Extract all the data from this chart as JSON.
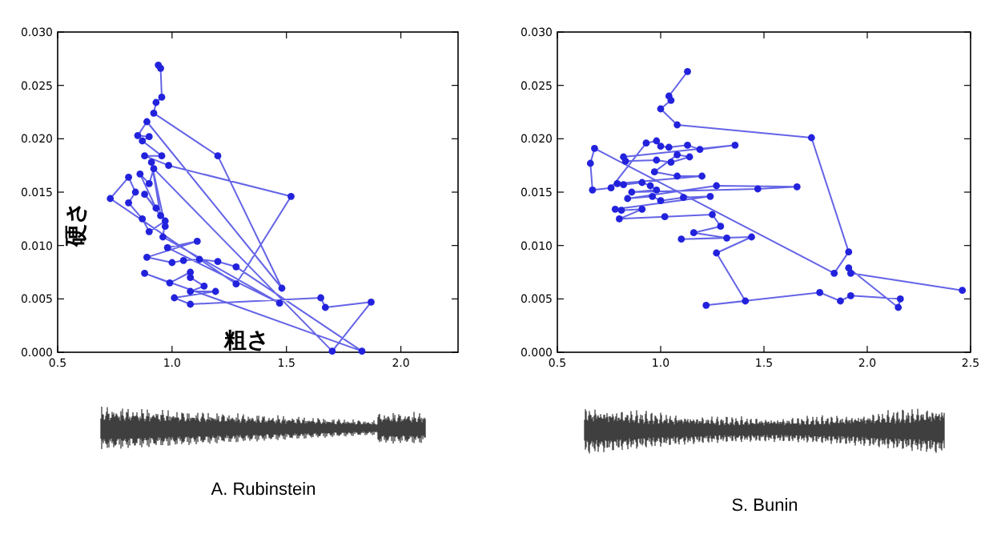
{
  "chart_data": [
    {
      "type": "line",
      "xlabel": "粗さ",
      "ylabel": "硬さ",
      "annotations": [
        "A. Rubinstein"
      ],
      "marker": "circle",
      "line_style": "solid",
      "xlim": [
        0.5,
        2.25
      ],
      "xticks": [
        {
          "value": 0.5,
          "label": "0.5"
        },
        {
          "value": 1,
          "label": "1.0"
        },
        {
          "value": 1.5,
          "label": "1.5"
        },
        {
          "value": 2,
          "label": "2.0"
        }
      ],
      "ylim": [
        0,
        0.03
      ],
      "yticks": [
        {
          "value": 0,
          "label": "0.000"
        },
        {
          "value": 0.005,
          "label": "0.005"
        },
        {
          "value": 0.01,
          "label": "0.010"
        },
        {
          "value": 0.015,
          "label": "0.015"
        },
        {
          "value": 0.02,
          "label": "0.020"
        },
        {
          "value": 0.025,
          "label": "0.025"
        },
        {
          "value": 0.03,
          "label": "0.030"
        }
      ],
      "series": [
        {
          "color": "#2222dd",
          "x": [
            0.94,
            0.95,
            0.955,
            0.93,
            0.92,
            1.2,
            1.48,
            0.89,
            0.85,
            0.9,
            0.87,
            0.955,
            0.88,
            0.985,
            1.52,
            1.28,
            0.73,
            0.81,
            0.84,
            0.81,
            0.87,
            0.9,
            0.97,
            0.96,
            1.47,
            0.98,
            1.11,
            0.89,
            1.0,
            1.05,
            1.12,
            1.2,
            1.28,
            1.83,
            0.88,
            0.99,
            1.08,
            1.08,
            1.14,
            1.08,
            1.19,
            1.01,
            1.08,
            1.65,
            1.67,
            1.87,
            1.7,
            0.92,
            0.9,
            0.86,
            0.93,
            0.88,
            0.95,
            0.91,
            0.97
          ],
          "values": [
            0.0269,
            0.0266,
            0.0239,
            0.0234,
            0.0224,
            0.0184,
            0.006,
            0.0216,
            0.0203,
            0.0202,
            0.0198,
            0.0184,
            0.0184,
            0.0175,
            0.0146,
            0.0064,
            0.0144,
            0.0164,
            0.015,
            0.014,
            0.0125,
            0.0113,
            0.0123,
            0.0108,
            0.0046,
            0.0098,
            0.0104,
            0.0089,
            0.0084,
            0.0086,
            0.0087,
            0.0085,
            0.008,
            0.0001,
            0.0074,
            0.0065,
            0.0075,
            0.007,
            0.0062,
            0.0057,
            0.0057,
            0.0051,
            0.0045,
            0.0051,
            0.0042,
            0.0047,
            0.0001,
            0.0172,
            0.0158,
            0.0167,
            0.0135,
            0.0148,
            0.0128,
            0.0178,
            0.0118
          ]
        }
      ]
    },
    {
      "type": "line",
      "annotations": [
        "S. Bunin"
      ],
      "marker": "circle",
      "line_style": "solid",
      "xlim": [
        0.5,
        2.5
      ],
      "xticks": [
        {
          "value": 0.5,
          "label": "0.5"
        },
        {
          "value": 1,
          "label": "1.0"
        },
        {
          "value": 1.5,
          "label": "1.5"
        },
        {
          "value": 2,
          "label": "2.0"
        },
        {
          "value": 2.5,
          "label": "2.5"
        }
      ],
      "ylim": [
        0,
        0.03
      ],
      "yticks": [
        {
          "value": 0,
          "label": "0.000"
        },
        {
          "value": 0.005,
          "label": "0.005"
        },
        {
          "value": 0.01,
          "label": "0.010"
        },
        {
          "value": 0.015,
          "label": "0.015"
        },
        {
          "value": 0.02,
          "label": "0.020"
        },
        {
          "value": 0.025,
          "label": "0.025"
        },
        {
          "value": 0.03,
          "label": "0.030"
        }
      ],
      "series": [
        {
          "color": "#2222dd",
          "x": [
            1.13,
            1.04,
            1.05,
            1.0,
            1.08,
            1.73,
            1.91,
            1.84,
            0.68,
            0.66,
            0.67,
            0.76,
            0.93,
            0.98,
            1.0,
            1.04,
            1.13,
            1.19,
            1.36,
            0.82,
            0.83,
            0.98,
            1.05,
            1.14,
            1.08,
            0.97,
            1.08,
            1.2,
            0.79,
            0.82,
            0.91,
            0.95,
            0.98,
            0.86,
            1.47,
            1.66,
            1.27,
            0.84,
            0.96,
            1.0,
            1.11,
            1.24,
            0.78,
            0.81,
            0.91,
            0.8,
            1.02,
            1.25,
            1.29,
            1.16,
            1.32,
            1.1,
            1.44,
            1.27,
            1.41,
            1.22,
            1.77,
            1.87,
            1.92,
            2.16,
            2.15,
            1.91,
            1.92,
            2.46
          ],
          "values": [
            0.0263,
            0.024,
            0.0236,
            0.0228,
            0.0213,
            0.0201,
            0.0094,
            0.0074,
            0.0191,
            0.0177,
            0.0152,
            0.0154,
            0.0196,
            0.0198,
            0.0193,
            0.0192,
            0.0194,
            0.019,
            0.0194,
            0.0183,
            0.0179,
            0.018,
            0.0178,
            0.0183,
            0.0185,
            0.0169,
            0.0165,
            0.0165,
            0.0158,
            0.0157,
            0.0159,
            0.0156,
            0.0152,
            0.015,
            0.0153,
            0.0155,
            0.0156,
            0.0144,
            0.0146,
            0.0142,
            0.0145,
            0.0146,
            0.0134,
            0.0133,
            0.0134,
            0.0125,
            0.0127,
            0.0129,
            0.0118,
            0.0112,
            0.0107,
            0.0106,
            0.0108,
            0.0093,
            0.0048,
            0.0044,
            0.0056,
            0.0048,
            0.0053,
            0.005,
            0.0042,
            0.0079,
            0.0074,
            0.0058
          ]
        }
      ]
    }
  ]
}
